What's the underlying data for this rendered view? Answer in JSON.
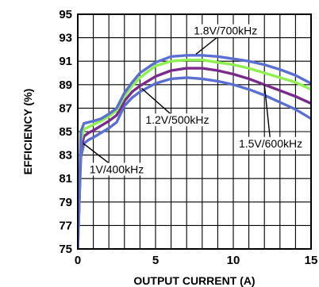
{
  "chart_data": {
    "type": "line",
    "xlabel": "OUTPUT CURRENT (A)",
    "ylabel": "EFFICIENCY (%)",
    "xlim": [
      0,
      15
    ],
    "ylim": [
      75,
      95
    ],
    "x_ticks": [
      0,
      5,
      10,
      15
    ],
    "y_ticks": [
      75,
      77,
      79,
      81,
      83,
      85,
      87,
      89,
      91,
      93,
      95
    ],
    "grid": true,
    "legend": "none",
    "series": [
      {
        "name": "1V/400kHz",
        "color": "#5a6fd0",
        "x": [
          0,
          0.2,
          0.4,
          0.7,
          1,
          1.5,
          2,
          2.5,
          3,
          3.5,
          4,
          5,
          6,
          7,
          8,
          9,
          10,
          11,
          12,
          13,
          14,
          15
        ],
        "y": [
          75,
          82.8,
          84,
          84.3,
          84.5,
          84.9,
          85.3,
          85.8,
          87.2,
          87.9,
          88.4,
          89.1,
          89.5,
          89.6,
          89.5,
          89.3,
          89.0,
          88.6,
          88.1,
          87.5,
          86.9,
          86.1
        ]
      },
      {
        "name": "1.2V/500kHz",
        "color": "#7a2a8a",
        "x": [
          0,
          0.2,
          0.4,
          0.7,
          1,
          1.5,
          2,
          2.5,
          3,
          3.5,
          4,
          5,
          6,
          7,
          8,
          9,
          10,
          11,
          12,
          13,
          14,
          15
        ],
        "y": [
          75,
          83.5,
          84.6,
          84.9,
          85.1,
          85.5,
          85.9,
          86.4,
          87.6,
          88.4,
          88.9,
          89.7,
          90.2,
          90.4,
          90.4,
          90.2,
          89.9,
          89.5,
          89.0,
          88.5,
          88.0,
          87.4
        ]
      },
      {
        "name": "1.5V/600kHz",
        "color": "#8ef050",
        "x": [
          0,
          0.2,
          0.4,
          0.7,
          1,
          1.5,
          2,
          2.5,
          3,
          3.5,
          4,
          5,
          6,
          7,
          8,
          9,
          10,
          11,
          12,
          13,
          14,
          15
        ],
        "y": [
          75,
          84.2,
          85.2,
          85.4,
          85.6,
          85.9,
          86.3,
          86.8,
          88.0,
          88.9,
          89.6,
          90.6,
          91.0,
          91.1,
          91.1,
          90.9,
          90.7,
          90.4,
          90.0,
          89.6,
          89.2,
          88.6
        ]
      },
      {
        "name": "1.8V/700kHz",
        "color": "#5a6fd0",
        "x": [
          0,
          0.2,
          0.4,
          0.7,
          1,
          1.5,
          2,
          2.5,
          3,
          3.5,
          4,
          5,
          6,
          7,
          8,
          9,
          10,
          11,
          12,
          13,
          14,
          15
        ],
        "y": [
          75,
          85.0,
          85.7,
          85.8,
          85.9,
          86.1,
          86.5,
          87.0,
          88.3,
          89.2,
          90.0,
          90.9,
          91.4,
          91.5,
          91.5,
          91.4,
          91.2,
          91.0,
          90.7,
          90.3,
          89.8,
          89.1
        ]
      }
    ],
    "annotations": [
      {
        "text": "1.8V/700kHz",
        "target": "1.8V/700kHz",
        "label_x": 9.5,
        "label_y": 93.6,
        "arrow_x": 7.6,
        "arrow_y": 91.6
      },
      {
        "text": "1.2V/500kHz",
        "target": "1.2V/500kHz",
        "label_x": 6.4,
        "label_y": 86.0,
        "arrow_x": 4.1,
        "arrow_y": 88.7
      },
      {
        "text": "1.5V/600kHz",
        "target": "1.5V/600kHz",
        "label_x": 12.4,
        "label_y": 84.0,
        "arrow_x": 12.0,
        "arrow_y": 89.0
      },
      {
        "text": "1V/400kHz",
        "target": "1V/400kHz",
        "label_x": 2.5,
        "label_y": 81.8,
        "arrow_x": 0.35,
        "arrow_y": 84.0
      }
    ]
  }
}
